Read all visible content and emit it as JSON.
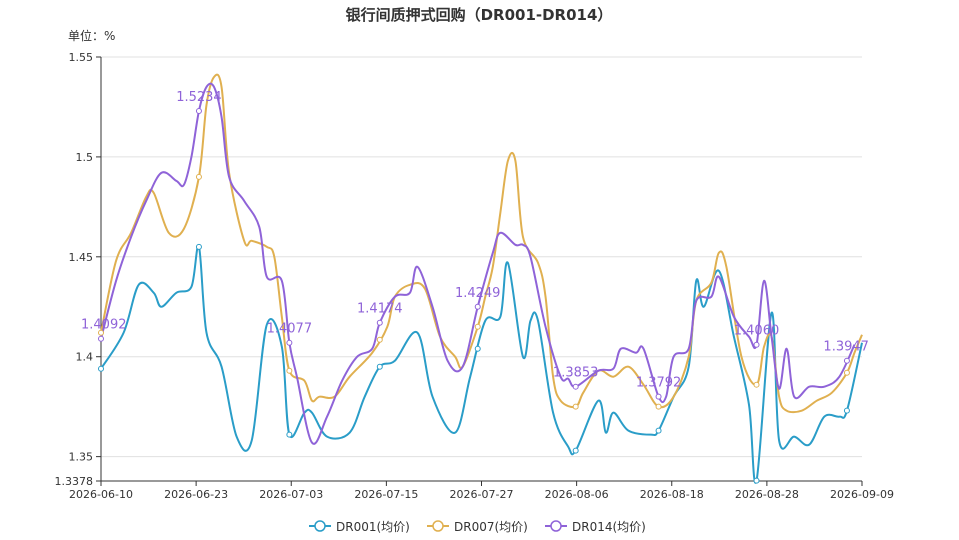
{
  "chart_data": {
    "type": "line",
    "title": "银行间质押式回购（DR001-DR014）",
    "unit_label": "单位：%",
    "ylim": [
      1.3378,
      1.55
    ],
    "y_ticks": [
      "1.55",
      "1.5",
      "1.45",
      "1.4",
      "1.35",
      "1.3378"
    ],
    "x_ticks": [
      "2026-06-10",
      "2026-06-23",
      "2026-07-03",
      "2026-07-15",
      "2026-07-27",
      "2026-08-06",
      "2026-08-18",
      "2026-08-28",
      "2026-09-09"
    ],
    "grid": true,
    "legend_position": "bottom",
    "series": [
      {
        "name": "DR001(均价)",
        "color": "#2a9dc8",
        "points": [
          [
            0,
            1.394
          ],
          [
            3,
            1.412
          ],
          [
            5,
            1.436
          ],
          [
            7,
            1.432
          ],
          [
            8,
            1.425
          ],
          [
            10,
            1.432
          ],
          [
            12,
            1.435
          ],
          [
            13,
            1.455
          ],
          [
            14,
            1.412
          ],
          [
            16,
            1.395
          ],
          [
            18,
            1.36
          ],
          [
            20,
            1.358
          ],
          [
            22,
            1.416
          ],
          [
            24,
            1.405
          ],
          [
            25,
            1.361
          ],
          [
            27,
            1.372
          ],
          [
            28,
            1.372
          ],
          [
            30,
            1.36
          ],
          [
            33,
            1.362
          ],
          [
            35,
            1.38
          ],
          [
            37,
            1.395
          ],
          [
            39,
            1.398
          ],
          [
            42,
            1.412
          ],
          [
            44,
            1.38
          ],
          [
            47,
            1.362
          ],
          [
            49,
            1.39
          ],
          [
            51,
            1.418
          ],
          [
            53,
            1.42
          ],
          [
            54,
            1.447
          ],
          [
            56,
            1.4
          ],
          [
            57,
            1.418
          ],
          [
            58,
            1.418
          ],
          [
            60,
            1.372
          ],
          [
            62,
            1.355
          ],
          [
            63,
            1.353
          ],
          [
            66,
            1.378
          ],
          [
            67,
            1.362
          ],
          [
            68,
            1.372
          ],
          [
            70,
            1.363
          ],
          [
            73,
            1.361
          ],
          [
            74,
            1.363
          ],
          [
            76,
            1.38
          ],
          [
            78,
            1.395
          ],
          [
            79,
            1.438
          ],
          [
            80,
            1.425
          ],
          [
            82,
            1.443
          ],
          [
            84,
            1.41
          ],
          [
            86,
            1.376
          ],
          [
            87,
            1.338
          ],
          [
            89,
            1.422
          ],
          [
            90,
            1.358
          ],
          [
            92,
            1.36
          ],
          [
            94,
            1.356
          ],
          [
            96,
            1.37
          ],
          [
            98,
            1.37
          ],
          [
            99,
            1.373
          ],
          [
            101,
            1.407
          ]
        ]
      },
      {
        "name": "DR007(均价)",
        "color": "#e0b050",
        "points": [
          [
            0,
            1.412
          ],
          [
            2,
            1.448
          ],
          [
            4,
            1.462
          ],
          [
            6,
            1.48
          ],
          [
            7,
            1.482
          ],
          [
            9,
            1.462
          ],
          [
            11,
            1.464
          ],
          [
            13,
            1.49
          ],
          [
            14,
            1.526
          ],
          [
            15,
            1.54
          ],
          [
            16,
            1.535
          ],
          [
            17,
            1.492
          ],
          [
            19,
            1.458
          ],
          [
            20,
            1.458
          ],
          [
            22,
            1.455
          ],
          [
            23,
            1.45
          ],
          [
            24,
            1.42
          ],
          [
            25,
            1.393
          ],
          [
            27,
            1.388
          ],
          [
            28,
            1.378
          ],
          [
            29,
            1.38
          ],
          [
            31,
            1.38
          ],
          [
            33,
            1.39
          ],
          [
            36,
            1.402
          ],
          [
            38,
            1.415
          ],
          [
            39,
            1.43
          ],
          [
            41,
            1.436
          ],
          [
            43,
            1.434
          ],
          [
            45,
            1.41
          ],
          [
            47,
            1.4
          ],
          [
            48,
            1.395
          ],
          [
            50,
            1.415
          ],
          [
            51,
            1.43
          ],
          [
            52,
            1.445
          ],
          [
            53,
            1.472
          ],
          [
            54,
            1.498
          ],
          [
            55,
            1.498
          ],
          [
            56,
            1.46
          ],
          [
            58,
            1.447
          ],
          [
            59,
            1.43
          ],
          [
            60,
            1.39
          ],
          [
            61,
            1.378
          ],
          [
            63,
            1.375
          ],
          [
            64,
            1.382
          ],
          [
            66,
            1.393
          ],
          [
            68,
            1.39
          ],
          [
            70,
            1.395
          ],
          [
            72,
            1.386
          ],
          [
            74,
            1.375
          ],
          [
            76,
            1.38
          ],
          [
            78,
            1.4
          ],
          [
            79,
            1.428
          ],
          [
            81,
            1.437
          ],
          [
            82,
            1.452
          ],
          [
            83,
            1.445
          ],
          [
            85,
            1.4
          ],
          [
            87,
            1.386
          ],
          [
            88,
            1.405
          ],
          [
            89,
            1.41
          ],
          [
            90,
            1.38
          ],
          [
            91,
            1.373
          ],
          [
            93,
            1.373
          ],
          [
            95,
            1.378
          ],
          [
            97,
            1.382
          ],
          [
            99,
            1.392
          ],
          [
            100,
            1.402
          ],
          [
            101,
            1.411
          ]
        ]
      },
      {
        "name": "DR014(均价)",
        "color": "#8f63d8",
        "points": [
          [
            0,
            1.409
          ],
          [
            2,
            1.438
          ],
          [
            4,
            1.46
          ],
          [
            6,
            1.478
          ],
          [
            8,
            1.492
          ],
          [
            10,
            1.488
          ],
          [
            11,
            1.486
          ],
          [
            12,
            1.5
          ],
          [
            13,
            1.523
          ],
          [
            14,
            1.535
          ],
          [
            15,
            1.535
          ],
          [
            16,
            1.52
          ],
          [
            17,
            1.49
          ],
          [
            19,
            1.478
          ],
          [
            21,
            1.465
          ],
          [
            22,
            1.44
          ],
          [
            24,
            1.438
          ],
          [
            25,
            1.407
          ],
          [
            26,
            1.39
          ],
          [
            28,
            1.357
          ],
          [
            30,
            1.37
          ],
          [
            32,
            1.388
          ],
          [
            34,
            1.4
          ],
          [
            36,
            1.404
          ],
          [
            37,
            1.417
          ],
          [
            39,
            1.43
          ],
          [
            41,
            1.432
          ],
          [
            42,
            1.445
          ],
          [
            44,
            1.425
          ],
          [
            46,
            1.398
          ],
          [
            48,
            1.395
          ],
          [
            50,
            1.425
          ],
          [
            52,
            1.452
          ],
          [
            53,
            1.462
          ],
          [
            55,
            1.456
          ],
          [
            56,
            1.456
          ],
          [
            57,
            1.45
          ],
          [
            59,
            1.415
          ],
          [
            61,
            1.39
          ],
          [
            62,
            1.389
          ],
          [
            63,
            1.385
          ],
          [
            66,
            1.393
          ],
          [
            68,
            1.394
          ],
          [
            69,
            1.404
          ],
          [
            71,
            1.402
          ],
          [
            72,
            1.404
          ],
          [
            74,
            1.38
          ],
          [
            75,
            1.38
          ],
          [
            76,
            1.4
          ],
          [
            78,
            1.404
          ],
          [
            79,
            1.428
          ],
          [
            81,
            1.43
          ],
          [
            82,
            1.44
          ],
          [
            84,
            1.42
          ],
          [
            86,
            1.41
          ],
          [
            87,
            1.406
          ],
          [
            88,
            1.438
          ],
          [
            89,
            1.41
          ],
          [
            90,
            1.384
          ],
          [
            91,
            1.404
          ],
          [
            92,
            1.38
          ],
          [
            94,
            1.385
          ],
          [
            96,
            1.385
          ],
          [
            98,
            1.39
          ],
          [
            100,
            1.406
          ]
        ]
      }
    ],
    "data_labels": [
      {
        "series": 2,
        "index": 0,
        "text": "1.4092"
      },
      {
        "series": 2,
        "index": 13,
        "text": "1.5234"
      },
      {
        "series": 2,
        "index": 25,
        "text": "1.4077"
      },
      {
        "series": 2,
        "index": 37,
        "text": "1.4174"
      },
      {
        "series": 2,
        "index": 50,
        "text": "1.4249"
      },
      {
        "series": 2,
        "index": 63,
        "text": "1.3853"
      },
      {
        "series": 2,
        "index": 74,
        "text": "1.3792"
      },
      {
        "series": 2,
        "index": 87,
        "text": "1.4060"
      },
      {
        "series": 2,
        "index": 99,
        "text": "1.3947"
      }
    ],
    "marker_indices": [
      0,
      13,
      25,
      37,
      50,
      63,
      74,
      87,
      99
    ]
  }
}
